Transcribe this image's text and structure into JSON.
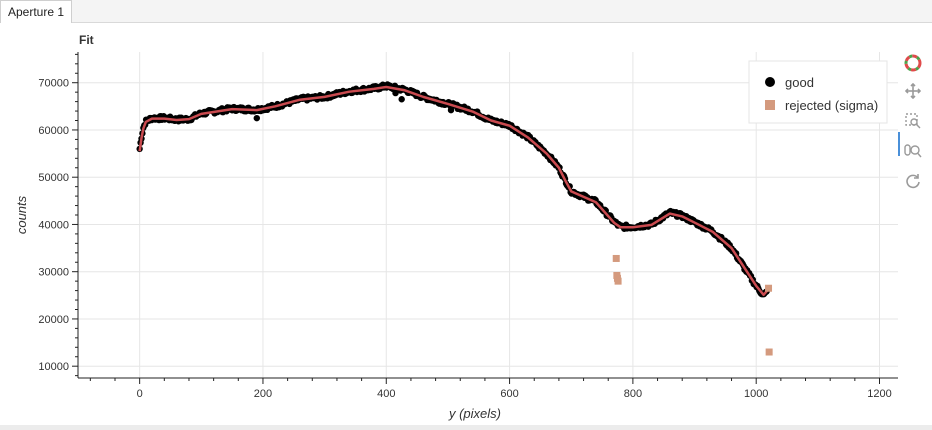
{
  "tabs": [
    {
      "label": "Aperture 1"
    }
  ],
  "chart_data": {
    "type": "scatter",
    "title": "Fit",
    "xlabel": "y (pixels)",
    "ylabel": "counts",
    "xlim": [
      -100,
      1230
    ],
    "ylim": [
      7500,
      76500
    ],
    "xticks": [
      0,
      200,
      400,
      600,
      800,
      1000,
      1200
    ],
    "yticks": [
      10000,
      20000,
      30000,
      40000,
      50000,
      60000,
      70000
    ],
    "grid": true,
    "legend_position": "top-right",
    "series": [
      {
        "name": "good",
        "marker": "circle",
        "color": "#000000",
        "profile_x": [
          0,
          3,
          6,
          10,
          20,
          40,
          60,
          80,
          100,
          150,
          190,
          220,
          260,
          300,
          340,
          380,
          400,
          430,
          460,
          500,
          540,
          570,
          600,
          630,
          660,
          680,
          690,
          700,
          740,
          770,
          780,
          800,
          830,
          860,
          880,
          900,
          930,
          960,
          980,
          1000,
          1012,
          1018
        ],
        "profile_y": [
          56000,
          58500,
          60500,
          61800,
          62500,
          62500,
          62200,
          62300,
          63500,
          64500,
          64300,
          65000,
          66500,
          67000,
          68200,
          68800,
          69300,
          68500,
          67000,
          65500,
          64000,
          62000,
          61000,
          58500,
          55000,
          52000,
          49500,
          47000,
          44800,
          40500,
          39500,
          39500,
          40000,
          42500,
          41800,
          40500,
          38500,
          35000,
          31000,
          27000,
          25000,
          25800
        ],
        "outliers_x": [
          190,
          415,
          425,
          505
        ],
        "outliers_y": [
          62500,
          67800,
          66500,
          64200
        ]
      },
      {
        "name": "rejected (sigma)",
        "marker": "square",
        "color": "#d49a7e",
        "x": [
          773,
          774,
          775,
          776,
          1020,
          1021
        ],
        "y": [
          32800,
          29200,
          28600,
          28000,
          26500,
          13000
        ]
      }
    ],
    "fit_line": {
      "color": "#c94a4f",
      "x": [
        0,
        3,
        6,
        10,
        20,
        40,
        60,
        80,
        100,
        150,
        190,
        220,
        260,
        300,
        340,
        380,
        400,
        430,
        460,
        500,
        540,
        570,
        600,
        630,
        660,
        680,
        690,
        700,
        740,
        770,
        780,
        800,
        830,
        860,
        880,
        900,
        930,
        960,
        980,
        1000,
        1012,
        1018
      ],
      "y": [
        55500,
        58300,
        60300,
        61700,
        62400,
        62400,
        62100,
        62300,
        63400,
        64400,
        64200,
        65000,
        66400,
        67000,
        68100,
        68700,
        69100,
        68400,
        67000,
        65500,
        63900,
        62000,
        60900,
        58400,
        55000,
        52000,
        49400,
        47000,
        44700,
        40300,
        39400,
        39400,
        39900,
        42300,
        41700,
        40400,
        38400,
        35000,
        31000,
        27000,
        25100,
        26000
      ]
    }
  },
  "toolbar": {
    "tools": [
      {
        "name": "bokeh-logo-icon"
      },
      {
        "name": "pan-icon"
      },
      {
        "name": "box-zoom-icon"
      },
      {
        "name": "wheel-zoom-icon"
      },
      {
        "name": "reset-icon"
      }
    ]
  }
}
